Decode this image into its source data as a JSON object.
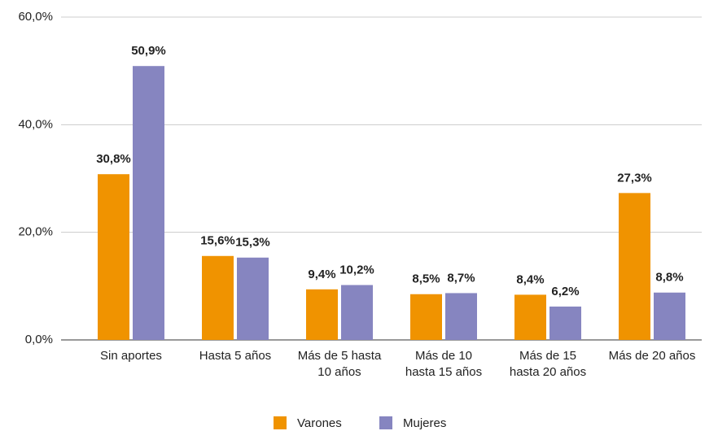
{
  "chart_data": {
    "type": "bar",
    "categories": [
      "Sin aportes",
      "Hasta 5 años",
      "Más de 5 hasta 10 años",
      "Más de 10 hasta 15 años",
      "Más de 15 hasta 20 años",
      "Más de 20 años"
    ],
    "series": [
      {
        "name": "Varones",
        "color": "#f09300",
        "values": [
          30.8,
          15.6,
          9.4,
          8.5,
          8.4,
          27.3
        ],
        "value_labels": [
          "30,8%",
          "15,6%",
          "9,4%",
          "8,5%",
          "8,4%",
          "27,3%"
        ]
      },
      {
        "name": "Mujeres",
        "color": "#8685c0",
        "values": [
          50.9,
          15.3,
          10.2,
          8.7,
          6.2,
          8.8
        ],
        "value_labels": [
          "50,9%",
          "15,3%",
          "10,2%",
          "8,7%",
          "6,2%",
          "8,8%"
        ]
      }
    ],
    "ylim": [
      0,
      60
    ],
    "yticks": [
      {
        "value": 0,
        "label": "0,0%"
      },
      {
        "value": 20,
        "label": "20,0%"
      },
      {
        "value": 40,
        "label": "40,0%"
      },
      {
        "value": 60,
        "label": "60,0%"
      }
    ],
    "grid": true,
    "legend": "bottom"
  }
}
